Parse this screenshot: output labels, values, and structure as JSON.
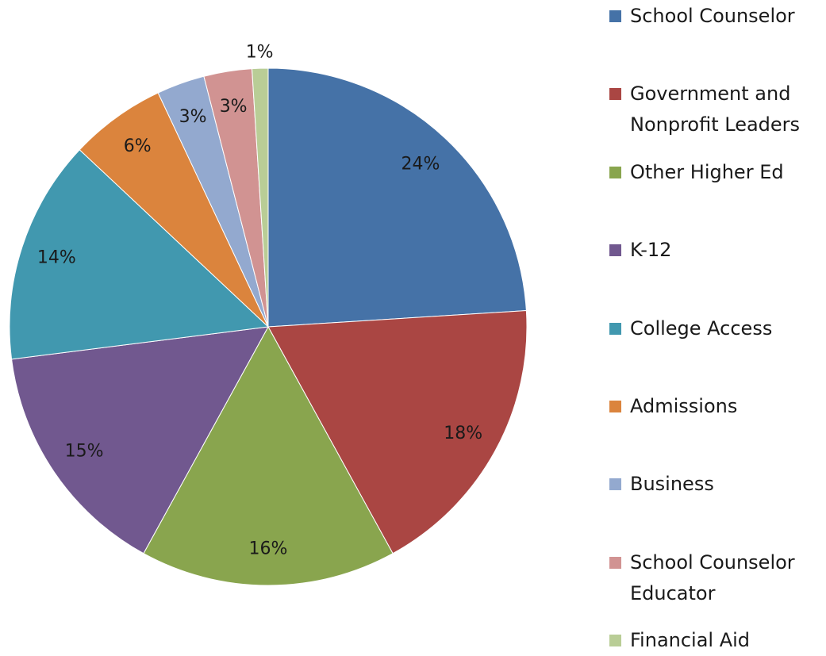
{
  "chart_data": {
    "type": "pie",
    "categories": [
      "School Counselor",
      "Government and Nonprofit Leaders",
      "Other Higher Ed",
      "K-12",
      "College Access",
      "Admissions",
      "Business",
      "School Counselor Educator",
      "Financial Aid"
    ],
    "values": [
      24,
      18,
      16,
      15,
      14,
      6,
      3,
      3,
      1
    ],
    "value_labels": [
      "24%",
      "18%",
      "16%",
      "15%",
      "14%",
      "6%",
      "3%",
      "3%",
      "1%"
    ],
    "colors": [
      "#4572a7",
      "#aa4643",
      "#89a54e",
      "#71588f",
      "#4198af",
      "#db843d",
      "#93a9cf",
      "#d19392",
      "#b9cd96"
    ],
    "legend": "right"
  }
}
